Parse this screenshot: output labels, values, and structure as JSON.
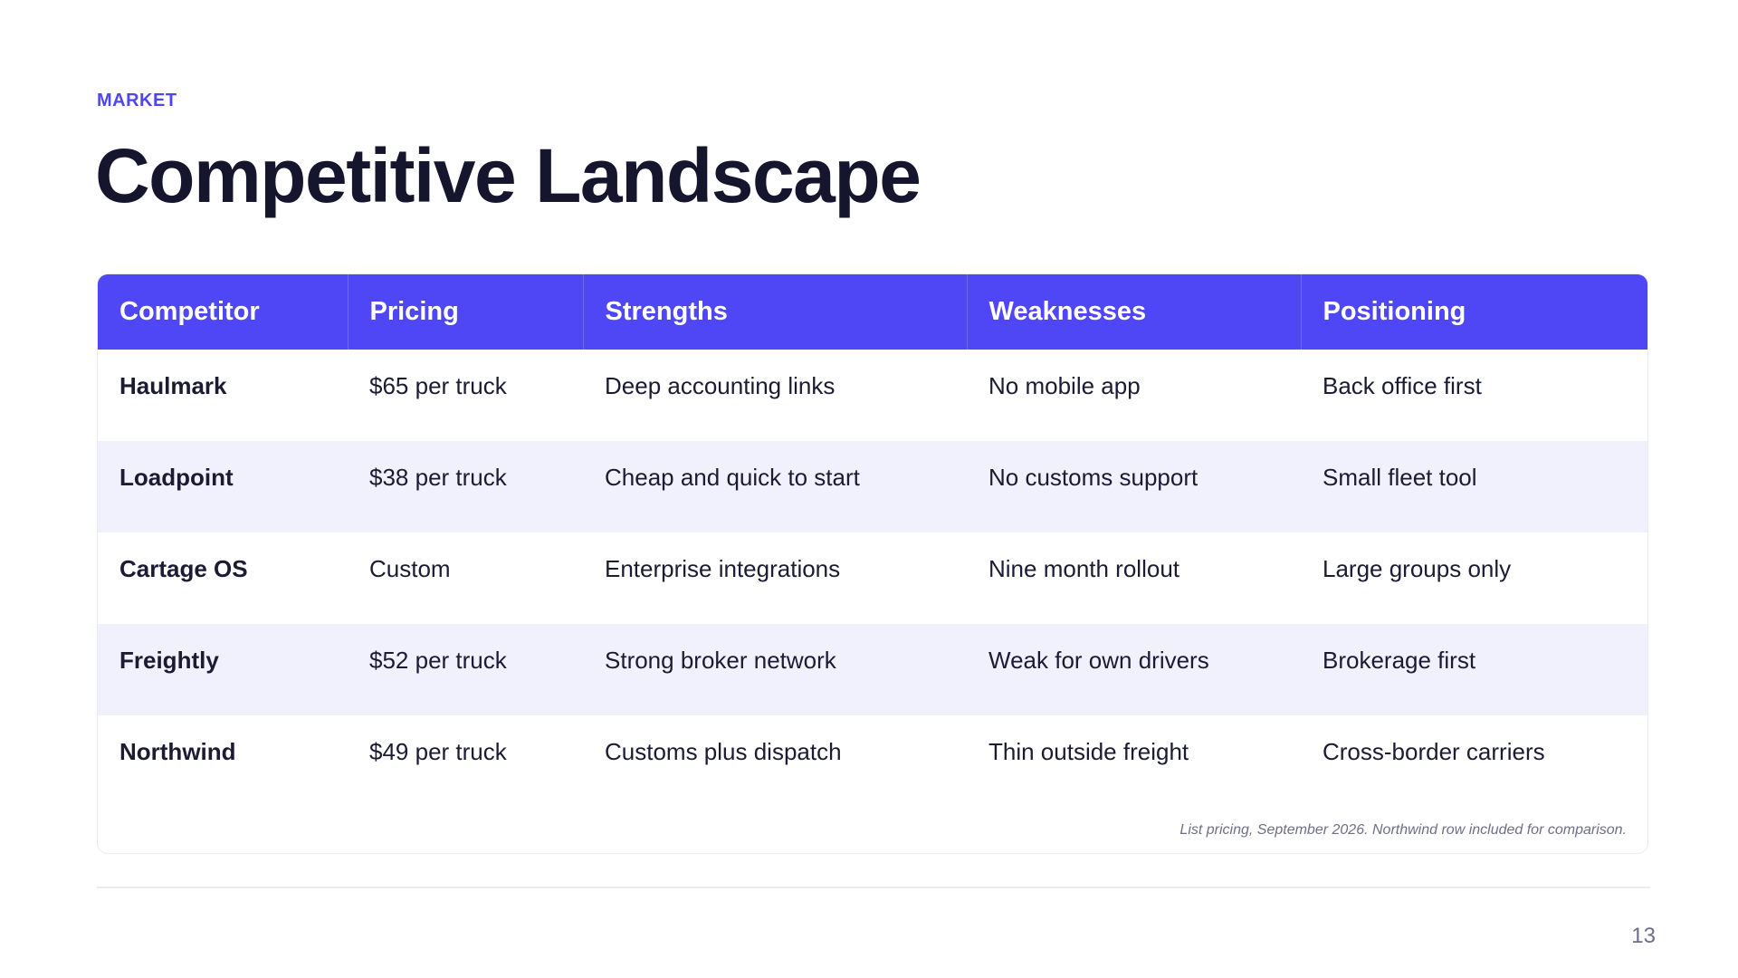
{
  "slide": {
    "eyebrow": "MARKET",
    "title": "Competitive Landscape",
    "page_number": "13"
  },
  "table": {
    "headers": [
      "Competitor",
      "Pricing",
      "Strengths",
      "Weaknesses",
      "Positioning"
    ],
    "rows": [
      [
        "Haulmark",
        "$65 per truck",
        "Deep accounting links",
        "No mobile app",
        "Back office first"
      ],
      [
        "Loadpoint",
        "$38 per truck",
        "Cheap and quick to start",
        "No customs support",
        "Small fleet tool"
      ],
      [
        "Cartage OS",
        "Custom",
        "Enterprise integrations",
        "Nine month rollout",
        "Large groups only"
      ],
      [
        "Freightly",
        "$52 per truck",
        "Strong broker network",
        "Weak for own drivers",
        "Brokerage first"
      ],
      [
        "Northwind",
        "$49 per truck",
        "Customs plus dispatch",
        "Thin outside freight",
        "Cross-border carriers"
      ]
    ],
    "footnote": "List pricing, September 2026. Northwind row included for comparison."
  }
}
